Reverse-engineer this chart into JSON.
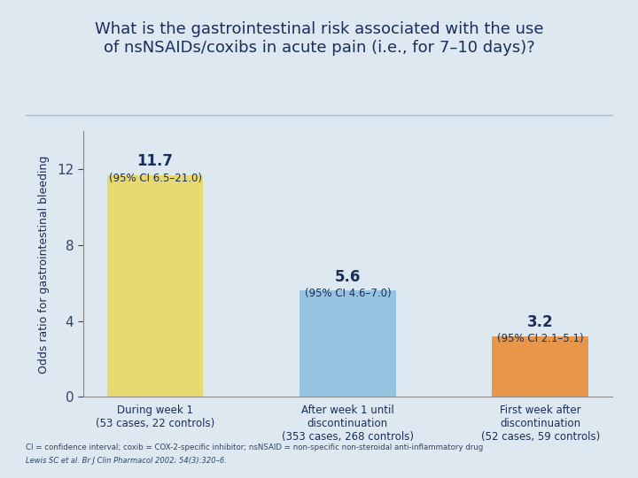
{
  "title_line1": "What is the gastrointestinal risk associated with the use",
  "title_line2": "of nsNSAIDs/coxibs in acute pain (i.e., for 7–10 days)?",
  "categories": [
    "During week 1\n(53 cases, 22 controls)",
    "After week 1 until\ndiscontinuation\n(353 cases, 268 controls)",
    "First week after\ndiscontinuation\n(52 cases, 59 controls)"
  ],
  "values": [
    11.7,
    5.6,
    3.2
  ],
  "value_labels": [
    "11.7",
    "5.6",
    "3.2"
  ],
  "ci_labels": [
    "(95% CI 6.5–21.0)",
    "(95% CI 4.6–7.0)",
    "(95% CI 2.1–5.1)"
  ],
  "bar_colors": [
    "#e8d870",
    "#96c4e0",
    "#e8964a"
  ],
  "ylabel": "Odds ratio for gastrointestinal bleeding",
  "ylim": [
    0,
    14
  ],
  "yticks": [
    0,
    4,
    8,
    12
  ],
  "background_color": "#dde8f0",
  "footnote1": "CI = confidence interval; coxib = COX-2-specific inhibitor; nsNSAID = non-specific non-steroidal anti-inflammatory drug",
  "footnote2": "Lewis SC et al. Br J Clin Pharmacol 2002; 54(3):320–6.",
  "title_color": "#1a2e5a",
  "axis_label_color": "#1a2e5a",
  "bar_value_color": "#1a2e5a",
  "tick_color": "#334466",
  "footnote_color": "#334466",
  "separator_color": "#aabbd0"
}
